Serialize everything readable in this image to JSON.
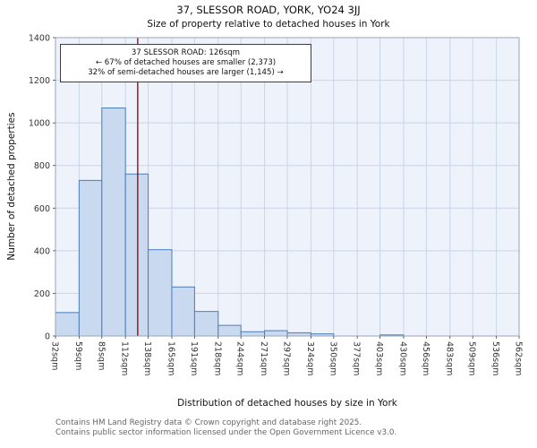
{
  "title": "37, SLESSOR ROAD, YORK, YO24 3JJ",
  "subtitle": "Size of property relative to detached houses in York",
  "annotation": {
    "line1": "37 SLESSOR ROAD: 126sqm",
    "line2": "← 67% of detached houses are smaller (2,373)",
    "line3": "32% of semi-detached houses are larger (1,145) →"
  },
  "footer": {
    "line1": "Contains HM Land Registry data © Crown copyright and database right 2025.",
    "line2": "Contains public sector information licensed under the Open Government Licence v3.0."
  },
  "chart_data": {
    "type": "bar",
    "title": "37, SLESSOR ROAD, YORK, YO24 3JJ — Size of property relative to detached houses in York",
    "xlabel": "Distribution of detached houses by size in York",
    "ylabel": "Number of detached properties",
    "bin_edges": [
      32,
      59,
      85,
      112,
      138,
      165,
      191,
      218,
      244,
      271,
      297,
      324,
      350,
      377,
      403,
      430,
      456,
      483,
      509,
      536,
      562
    ],
    "bin_labels": [
      "32sqm",
      "59sqm",
      "85sqm",
      "112sqm",
      "138sqm",
      "165sqm",
      "191sqm",
      "218sqm",
      "244sqm",
      "271sqm",
      "297sqm",
      "324sqm",
      "350sqm",
      "377sqm",
      "403sqm",
      "430sqm",
      "456sqm",
      "483sqm",
      "509sqm",
      "536sqm",
      "562sqm"
    ],
    "values": [
      110,
      730,
      1070,
      760,
      405,
      230,
      115,
      50,
      20,
      25,
      15,
      10,
      0,
      0,
      5,
      0,
      0,
      0,
      0,
      0
    ],
    "ylim": [
      0,
      1400
    ],
    "yticks": [
      0,
      200,
      400,
      600,
      800,
      1000,
      1200,
      1400
    ],
    "marker_value": 126,
    "grid": true,
    "colors": {
      "bar_fill": "#c9d9ef",
      "bar_edge": "#4a7ebb",
      "marker_line": "#8b0000",
      "grid": "#c9d5e8",
      "plot_bg": "#eef2fa",
      "frame": "#9aa4b5",
      "tick": "#444444",
      "text": "#333333"
    }
  }
}
